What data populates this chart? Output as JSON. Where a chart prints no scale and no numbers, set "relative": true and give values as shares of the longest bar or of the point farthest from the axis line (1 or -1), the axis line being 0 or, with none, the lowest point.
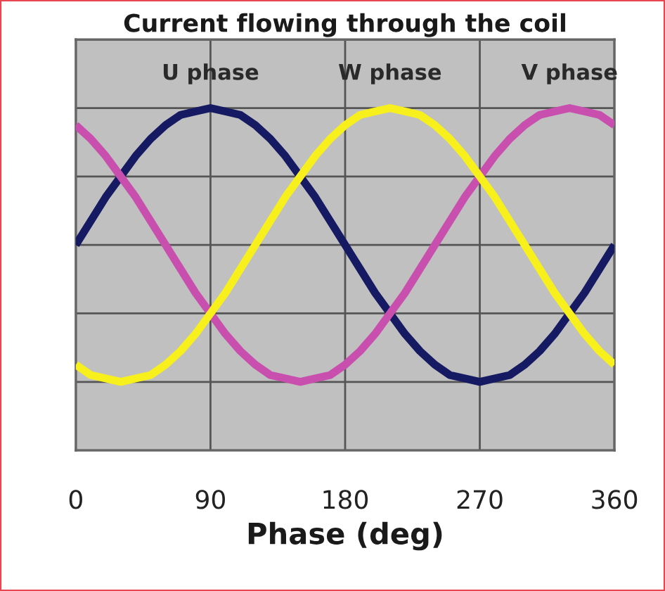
{
  "chart_data": {
    "type": "line",
    "title": "Current flowing through the coil",
    "xlabel": "Phase (deg)",
    "relative": true,
    "grid": true,
    "line_style": "solid",
    "x": [
      0,
      10,
      20,
      30,
      40,
      50,
      60,
      70,
      80,
      90,
      100,
      110,
      120,
      130,
      140,
      150,
      160,
      170,
      180,
      190,
      200,
      210,
      220,
      230,
      240,
      250,
      260,
      270,
      280,
      290,
      300,
      310,
      320,
      330,
      340,
      350,
      360
    ],
    "xlim": [
      0,
      360
    ],
    "xticks": [
      0,
      90,
      180,
      270,
      360
    ],
    "series": [
      {
        "name": "U phase",
        "color": "#151a62",
        "values": [
          0.6,
          0.67,
          0.74,
          0.8,
          0.86,
          0.91,
          0.95,
          0.98,
          0.99,
          1.0,
          0.99,
          0.98,
          0.95,
          0.91,
          0.86,
          0.8,
          0.74,
          0.67,
          0.6,
          0.53,
          0.46,
          0.4,
          0.34,
          0.29,
          0.25,
          0.22,
          0.21,
          0.2,
          0.21,
          0.22,
          0.25,
          0.29,
          0.34,
          0.4,
          0.46,
          0.53,
          0.6
        ]
      },
      {
        "name": "V phase",
        "color": "#c94fae",
        "values": [
          0.95,
          0.91,
          0.86,
          0.8,
          0.74,
          0.67,
          0.6,
          0.53,
          0.46,
          0.4,
          0.34,
          0.29,
          0.25,
          0.22,
          0.21,
          0.2,
          0.21,
          0.22,
          0.25,
          0.29,
          0.34,
          0.4,
          0.46,
          0.53,
          0.6,
          0.67,
          0.74,
          0.8,
          0.86,
          0.91,
          0.95,
          0.98,
          0.99,
          1.0,
          0.99,
          0.98,
          0.95
        ]
      },
      {
        "name": "W phase",
        "color": "#f7f01c",
        "values": [
          0.25,
          0.22,
          0.21,
          0.2,
          0.21,
          0.22,
          0.25,
          0.29,
          0.34,
          0.4,
          0.46,
          0.53,
          0.6,
          0.67,
          0.74,
          0.8,
          0.86,
          0.91,
          0.95,
          0.98,
          0.99,
          1.0,
          0.99,
          0.98,
          0.95,
          0.91,
          0.86,
          0.8,
          0.74,
          0.67,
          0.6,
          0.53,
          0.46,
          0.4,
          0.34,
          0.29,
          0.25
        ]
      }
    ]
  }
}
